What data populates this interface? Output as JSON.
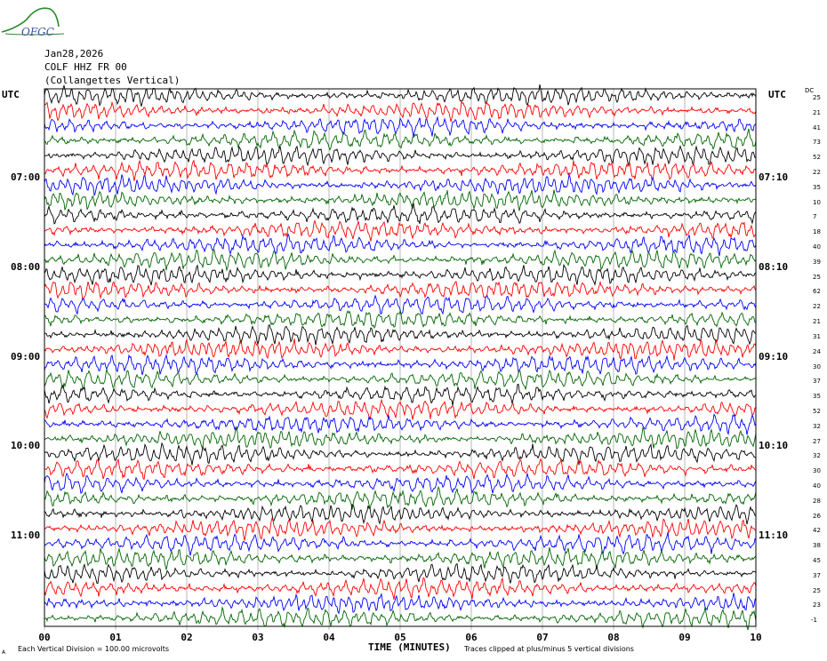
{
  "header": {
    "org": "OFGC",
    "date": "Jan28,2026",
    "station": "COLF HHZ FR 00",
    "location": "(Collangettes Vertical)",
    "tz_left": "UTC",
    "tz_right": "UTC",
    "dc_label": "DC"
  },
  "footer": {
    "scale_note": "Each Vertical Division =  100.00 microvolts",
    "clip_note": "Traces clipped at plus/minus 5 vertical divisions",
    "corner_mark": "A"
  },
  "colors": {
    "trace_cycle": [
      "#000000",
      "#ff0000",
      "#0000ff",
      "#006600"
    ],
    "grid": "#888888"
  },
  "chart_data": {
    "type": "line",
    "xlabel": "TIME (MINUTES)",
    "x_ticks": [
      "00",
      "01",
      "02",
      "03",
      "04",
      "05",
      "06",
      "07",
      "08",
      "09",
      "10"
    ],
    "xlim": [
      0,
      10
    ],
    "row_minutes": 10,
    "left_hour_labels": [
      "07:00",
      "08:00",
      "09:00",
      "10:00",
      "11:00"
    ],
    "right_hour_labels": [
      "07:10",
      "08:10",
      "09:10",
      "10:10",
      "11:10"
    ],
    "dc_offsets": [
      25,
      21,
      41,
      73,
      52,
      22,
      35,
      10,
      7,
      18,
      40,
      39,
      25,
      62,
      22,
      21,
      31,
      24,
      30,
      37,
      35,
      52,
      32,
      27,
      32,
      30,
      40,
      28,
      26,
      42,
      38,
      45,
      37,
      25,
      23,
      -1
    ],
    "trace_count": 36,
    "clipping_divisions": 5,
    "microvolts_per_division": 100.0
  }
}
